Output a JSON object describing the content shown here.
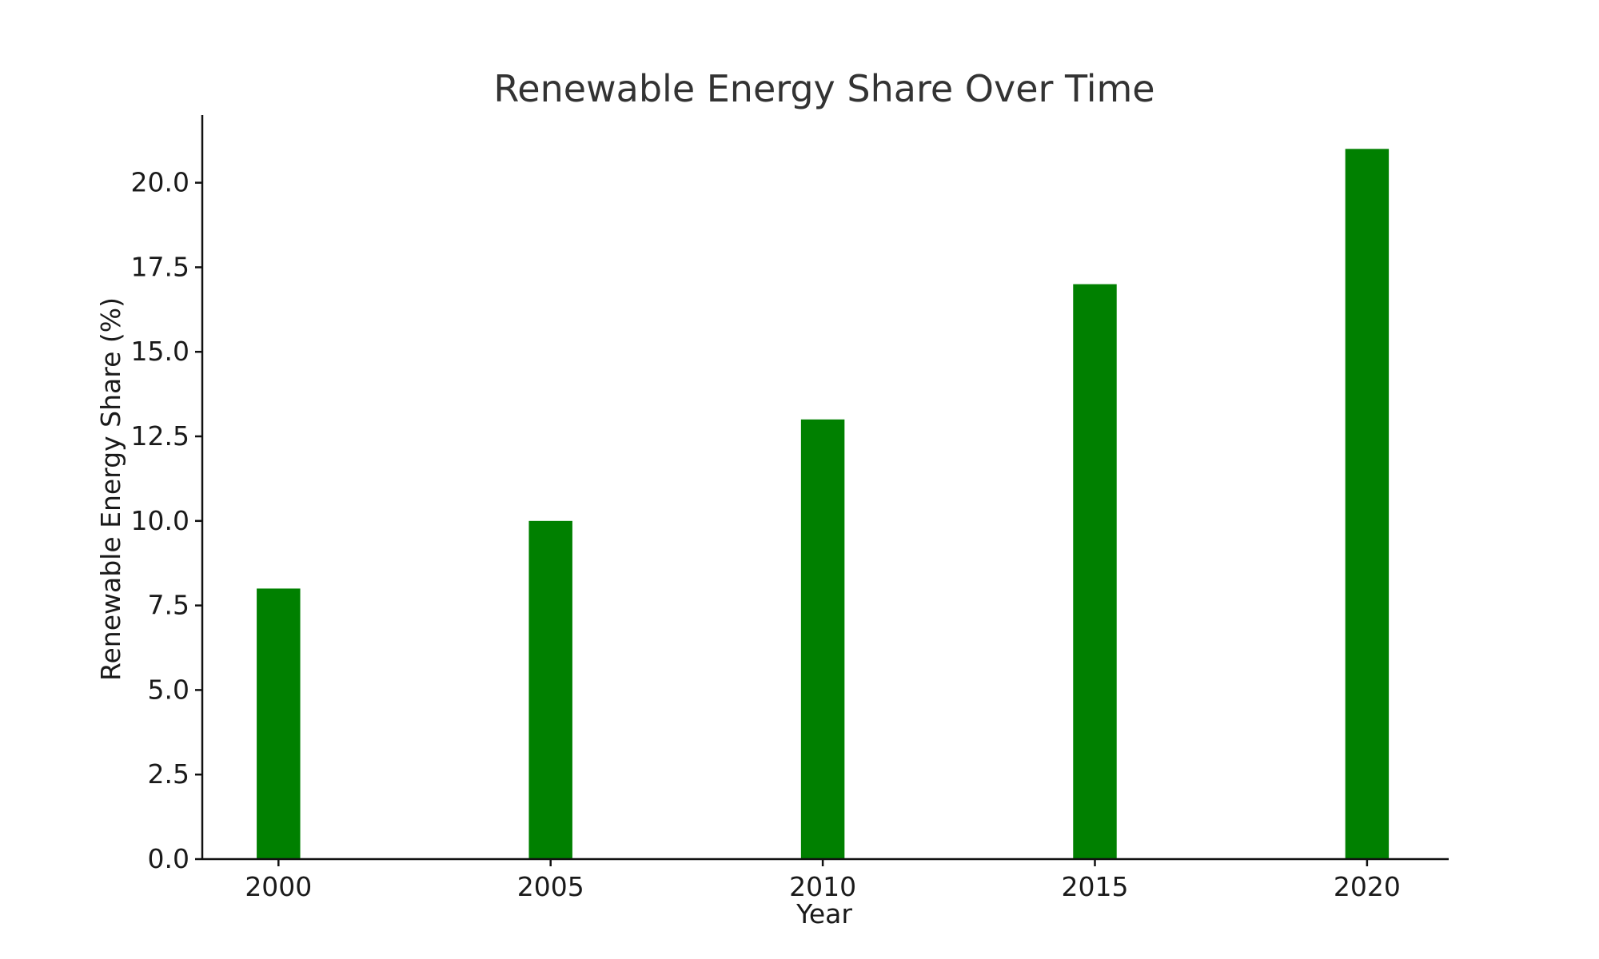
{
  "chart_data": {
    "type": "bar",
    "title": "Renewable Energy Share Over Time",
    "xlabel": "Year",
    "ylabel": "Renewable Energy Share (%)",
    "categories": [
      "2000",
      "2005",
      "2010",
      "2015",
      "2020"
    ],
    "x": [
      2000,
      2005,
      2010,
      2015,
      2020
    ],
    "values": [
      8,
      10,
      13,
      17,
      21
    ],
    "xlim": [
      1998.6,
      2021.5
    ],
    "ylim": [
      0,
      22
    ],
    "yticks": [
      0.0,
      2.5,
      5.0,
      7.5,
      10.0,
      12.5,
      15.0,
      17.5,
      20.0
    ],
    "ytick_labels": [
      "0.0",
      "2.5",
      "5.0",
      "7.5",
      "10.0",
      "12.5",
      "15.0",
      "17.5",
      "20.0"
    ],
    "bar_color": "#008000",
    "grid": false,
    "legend": "none"
  }
}
